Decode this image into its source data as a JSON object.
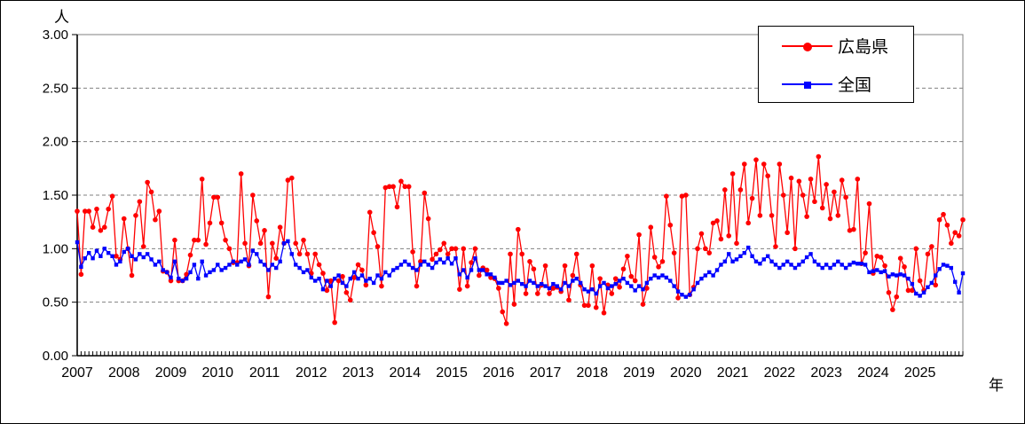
{
  "unit_labels": {
    "y_axis_unit": "人",
    "x_axis_unit": "年"
  },
  "y_axis": {
    "tick_labels": [
      "3.00",
      "2.50",
      "2.00",
      "1.50",
      "1.00",
      "0.50",
      "0.00"
    ]
  },
  "x_axis": {
    "year_labels": [
      "2007",
      "2008",
      "2009",
      "2010",
      "2011",
      "2012",
      "2013",
      "2014",
      "2015",
      "2016",
      "2017",
      "2018",
      "2019",
      "2020",
      "2021",
      "2022",
      "2023",
      "2024",
      "2025"
    ]
  },
  "legend": {
    "items": [
      {
        "label": "広島県",
        "color": "#ff0000",
        "marker": "circle-marker-icon"
      },
      {
        "label": "全国",
        "color": "#0000ff",
        "marker": "square-marker-icon"
      }
    ]
  },
  "chart_data": {
    "type": "line",
    "title": "",
    "x_frequency": "monthly",
    "x_range": [
      "2007-01",
      "2025-12"
    ],
    "ylim": [
      0,
      3
    ],
    "y_tick_interval": 0.5,
    "ylabel": "人",
    "xlabel": "年",
    "grid": {
      "horizontal_interval": 0.5,
      "style": "dashed",
      "color": "#808080"
    },
    "legend_position": "top-right",
    "series": [
      {
        "name": "広島県",
        "color": "#ff0000",
        "marker": "circle",
        "values": [
          1.35,
          0.76,
          1.35,
          1.35,
          1.2,
          1.37,
          1.17,
          1.2,
          1.37,
          1.49,
          0.93,
          0.9,
          1.28,
          1.0,
          0.75,
          1.31,
          1.44,
          1.02,
          1.62,
          1.53,
          1.27,
          1.35,
          0.79,
          0.78,
          0.7,
          1.08,
          0.7,
          0.7,
          0.76,
          0.94,
          1.08,
          1.08,
          1.65,
          1.04,
          1.24,
          1.48,
          1.48,
          1.24,
          1.08,
          1.0,
          0.87,
          0.87,
          1.7,
          1.05,
          0.84,
          1.5,
          1.26,
          1.05,
          1.17,
          0.55,
          1.05,
          0.91,
          1.2,
          1.05,
          1.64,
          1.66,
          1.05,
          0.95,
          1.08,
          0.95,
          0.77,
          0.95,
          0.85,
          0.77,
          0.61,
          0.7,
          0.31,
          0.7,
          0.74,
          0.59,
          0.52,
          0.73,
          0.85,
          0.8,
          0.66,
          1.34,
          1.15,
          1.02,
          0.65,
          1.57,
          1.58,
          1.58,
          1.39,
          1.63,
          1.58,
          1.58,
          0.97,
          0.65,
          0.88,
          1.52,
          1.28,
          0.9,
          0.95,
          0.99,
          1.05,
          0.95,
          1.0,
          1.0,
          0.62,
          1.0,
          0.65,
          0.87,
          1.0,
          0.75,
          0.82,
          0.8,
          0.73,
          0.72,
          0.63,
          0.41,
          0.3,
          0.95,
          0.48,
          1.18,
          0.95,
          0.58,
          0.88,
          0.81,
          0.58,
          0.66,
          0.84,
          0.58,
          0.63,
          0.64,
          0.6,
          0.84,
          0.52,
          0.75,
          0.95,
          0.66,
          0.47,
          0.47,
          0.84,
          0.45,
          0.72,
          0.4,
          0.66,
          0.58,
          0.72,
          0.64,
          0.81,
          0.93,
          0.74,
          0.7,
          1.13,
          0.48,
          0.63,
          1.2,
          0.92,
          0.83,
          0.88,
          1.49,
          1.22,
          0.96,
          0.54,
          1.49,
          1.5,
          0.57,
          0.64,
          1.0,
          1.14,
          1.0,
          0.96,
          1.24,
          1.26,
          1.09,
          1.55,
          1.12,
          1.7,
          1.05,
          1.55,
          1.79,
          1.24,
          1.47,
          1.83,
          1.31,
          1.79,
          1.68,
          1.31,
          1.02,
          1.79,
          1.5,
          1.15,
          1.66,
          1.0,
          1.63,
          1.5,
          1.3,
          1.65,
          1.44,
          1.86,
          1.38,
          1.6,
          1.28,
          1.53,
          1.31,
          1.64,
          1.48,
          1.17,
          1.18,
          1.65,
          0.86,
          0.96,
          1.42,
          0.77,
          0.93,
          0.92,
          0.84,
          0.59,
          0.43,
          0.55,
          0.91,
          0.83,
          0.61,
          0.61,
          1.0,
          0.7,
          0.61,
          0.95,
          1.02,
          0.66,
          1.27,
          1.32,
          1.22,
          1.05,
          1.15,
          1.12,
          1.27
        ]
      },
      {
        "name": "全国",
        "color": "#0000ff",
        "marker": "square",
        "values": [
          1.06,
          0.83,
          0.91,
          0.96,
          0.91,
          0.98,
          0.93,
          1.0,
          0.96,
          0.93,
          0.85,
          0.88,
          0.97,
          1.0,
          0.93,
          0.9,
          0.95,
          0.92,
          0.95,
          0.9,
          0.85,
          0.88,
          0.8,
          0.78,
          0.73,
          0.88,
          0.72,
          0.7,
          0.72,
          0.78,
          0.85,
          0.72,
          0.88,
          0.75,
          0.78,
          0.8,
          0.85,
          0.8,
          0.82,
          0.85,
          0.88,
          0.85,
          0.88,
          0.9,
          0.85,
          0.98,
          0.95,
          0.88,
          0.85,
          0.8,
          0.85,
          0.82,
          0.88,
          1.05,
          1.07,
          0.95,
          0.85,
          0.82,
          0.78,
          0.8,
          0.73,
          0.7,
          0.72,
          0.62,
          0.7,
          0.65,
          0.72,
          0.75,
          0.68,
          0.65,
          0.72,
          0.78,
          0.72,
          0.75,
          0.7,
          0.72,
          0.68,
          0.75,
          0.72,
          0.78,
          0.75,
          0.8,
          0.82,
          0.85,
          0.88,
          0.85,
          0.82,
          0.8,
          0.85,
          0.88,
          0.85,
          0.82,
          0.87,
          0.9,
          0.87,
          0.91,
          0.86,
          0.91,
          0.76,
          0.8,
          0.73,
          0.8,
          0.91,
          0.8,
          0.8,
          0.76,
          0.76,
          0.73,
          0.68,
          0.68,
          0.7,
          0.66,
          0.68,
          0.7,
          0.67,
          0.65,
          0.7,
          0.68,
          0.65,
          0.67,
          0.65,
          0.63,
          0.67,
          0.65,
          0.62,
          0.68,
          0.65,
          0.7,
          0.72,
          0.68,
          0.62,
          0.6,
          0.62,
          0.58,
          0.65,
          0.68,
          0.63,
          0.65,
          0.67,
          0.7,
          0.72,
          0.68,
          0.65,
          0.61,
          0.65,
          0.62,
          0.68,
          0.72,
          0.75,
          0.73,
          0.75,
          0.73,
          0.7,
          0.65,
          0.6,
          0.57,
          0.55,
          0.57,
          0.62,
          0.68,
          0.72,
          0.75,
          0.78,
          0.75,
          0.8,
          0.85,
          0.88,
          0.95,
          0.88,
          0.9,
          0.93,
          0.96,
          1.01,
          0.93,
          0.88,
          0.86,
          0.9,
          0.93,
          0.88,
          0.85,
          0.82,
          0.85,
          0.88,
          0.85,
          0.82,
          0.85,
          0.88,
          0.92,
          0.95,
          0.88,
          0.85,
          0.82,
          0.85,
          0.82,
          0.85,
          0.88,
          0.85,
          0.82,
          0.85,
          0.87,
          0.86,
          0.86,
          0.85,
          0.78,
          0.79,
          0.8,
          0.78,
          0.79,
          0.74,
          0.76,
          0.75,
          0.76,
          0.75,
          0.72,
          0.67,
          0.58,
          0.56,
          0.59,
          0.64,
          0.68,
          0.75,
          0.81,
          0.85,
          0.84,
          0.82,
          0.69,
          0.59,
          0.77
        ]
      }
    ]
  }
}
